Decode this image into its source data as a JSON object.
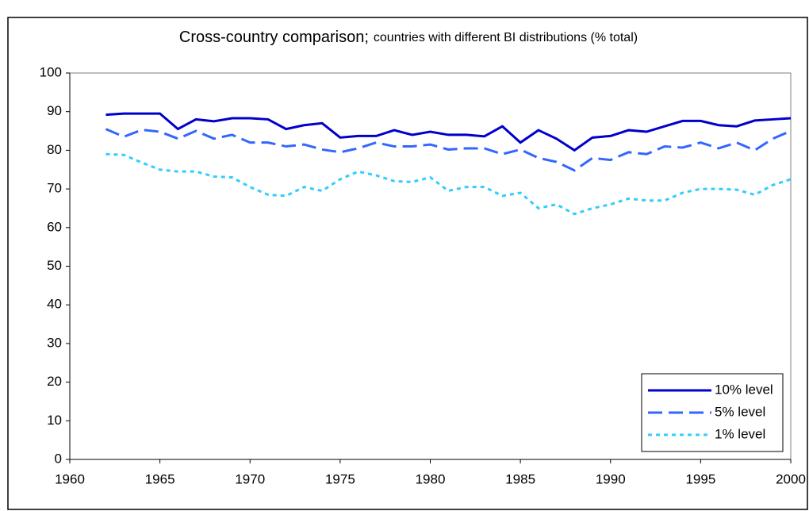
{
  "chart_data": {
    "type": "line",
    "title": "Cross-country comparison;",
    "subtitle": "countries with different BI distributions (% total)",
    "x": [
      1962,
      1963,
      1964,
      1965,
      1966,
      1967,
      1968,
      1969,
      1970,
      1971,
      1972,
      1973,
      1974,
      1975,
      1976,
      1977,
      1978,
      1979,
      1980,
      1981,
      1982,
      1983,
      1984,
      1985,
      1986,
      1987,
      1988,
      1989,
      1990,
      1991,
      1992,
      1993,
      1994,
      1995,
      1996,
      1997,
      1998,
      1999,
      2000
    ],
    "series": [
      {
        "name": "10% level",
        "color": "#0000cc",
        "dash": "solid",
        "values": [
          89.2,
          89.5,
          89.5,
          89.5,
          85.5,
          88,
          87.5,
          88.3,
          88.3,
          88,
          85.5,
          86.5,
          87,
          83.3,
          83.7,
          83.7,
          85.2,
          84,
          84.8,
          84,
          84,
          83.6,
          86.2,
          82,
          85.2,
          83,
          80,
          83.3,
          83.7,
          85.2,
          84.8,
          86.2,
          87.6,
          87.6,
          86.5,
          86.2,
          87.7,
          88,
          88.3
        ]
      },
      {
        "name": "5% level",
        "color": "#3366ff",
        "dash": "dashed",
        "values": [
          85.5,
          83.5,
          85.3,
          84.8,
          83,
          85,
          83,
          84,
          82,
          82,
          81,
          81.5,
          80.2,
          79.5,
          80.5,
          82,
          81,
          81,
          81.5,
          80.2,
          80.5,
          80.5,
          79,
          80.2,
          78,
          77,
          74.8,
          78,
          77.5,
          79.5,
          79,
          81,
          80.7,
          82,
          80.5,
          82,
          80,
          83,
          85
        ]
      },
      {
        "name": "1% level",
        "color": "#33ccff",
        "dash": "dotted",
        "values": [
          79,
          78.8,
          76.8,
          75,
          74.5,
          74.5,
          73.2,
          73,
          70.5,
          68.5,
          68.2,
          70.5,
          69.5,
          72.5,
          74.5,
          73.5,
          72,
          71.8,
          73,
          69.5,
          70.5,
          70.5,
          68.2,
          69,
          65,
          66,
          63.5,
          65,
          66,
          67.5,
          67,
          67,
          69,
          70,
          70,
          69.8,
          68.5,
          71,
          72.5
        ]
      }
    ],
    "xlim": [
      1960,
      2000
    ],
    "xticks": [
      1960,
      1965,
      1970,
      1975,
      1980,
      1985,
      1990,
      1995,
      2000
    ],
    "ylim": [
      0,
      100
    ],
    "yticks": [
      0,
      10,
      20,
      30,
      40,
      50,
      60,
      70,
      80,
      90,
      100
    ],
    "grid": false,
    "legend": "lower-right"
  }
}
